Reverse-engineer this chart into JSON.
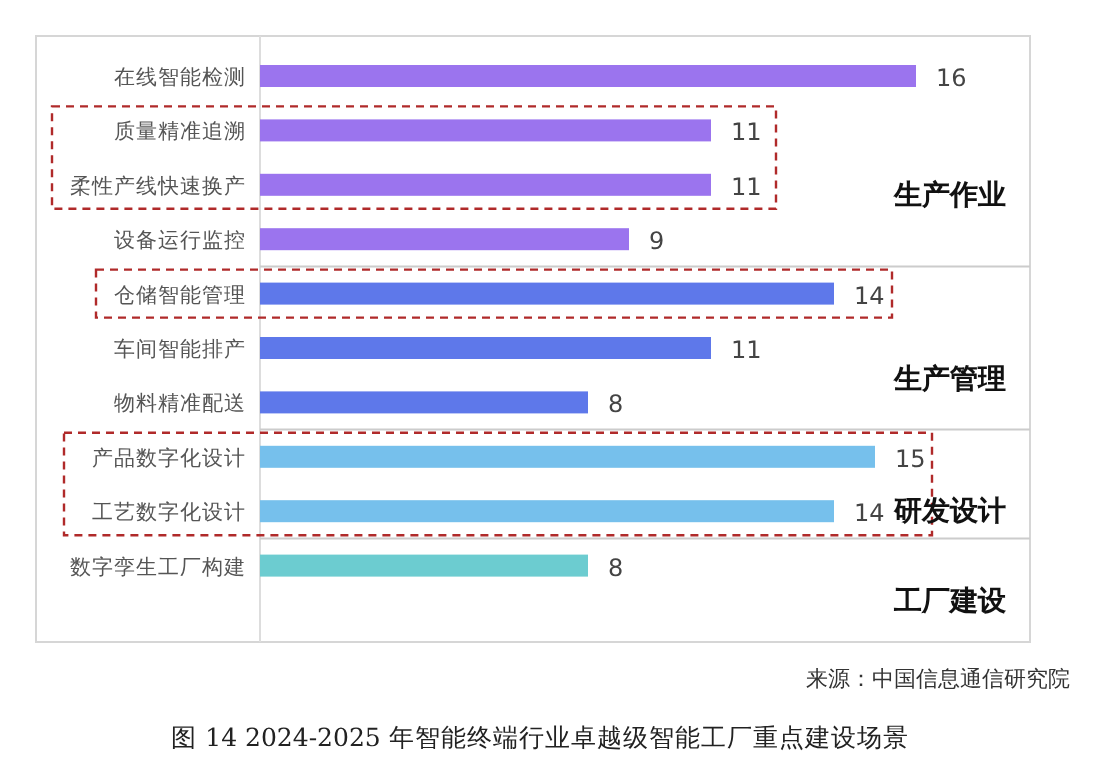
{
  "chart_data": {
    "type": "bar",
    "orientation": "horizontal",
    "title": "图 14 2024-2025 年智能终端行业卓越级智能工厂重点建设场景",
    "categories": [
      "在线智能检测",
      "质量精准追溯",
      "柔性产线快速换产",
      "设备运行监控",
      "仓储智能管理",
      "车间智能排产",
      "物料精准配送",
      "产品数字化设计",
      "工艺数字化设计",
      "数字孪生工厂构建"
    ],
    "values": [
      16,
      11,
      11,
      9,
      14,
      11,
      8,
      15,
      14,
      8
    ],
    "colors": [
      "#9b74ee",
      "#9b74ee",
      "#9b74ee",
      "#9b74ee",
      "#5e78ea",
      "#5e78ea",
      "#5e78ea",
      "#76c0ec",
      "#76c0ec",
      "#6cccd0"
    ],
    "data_labels": true,
    "annotations": [
      "生产作业",
      "生产管理",
      "研发设计",
      "工厂建设",
      "来源：中国信息通信研究院"
    ]
  }
}
